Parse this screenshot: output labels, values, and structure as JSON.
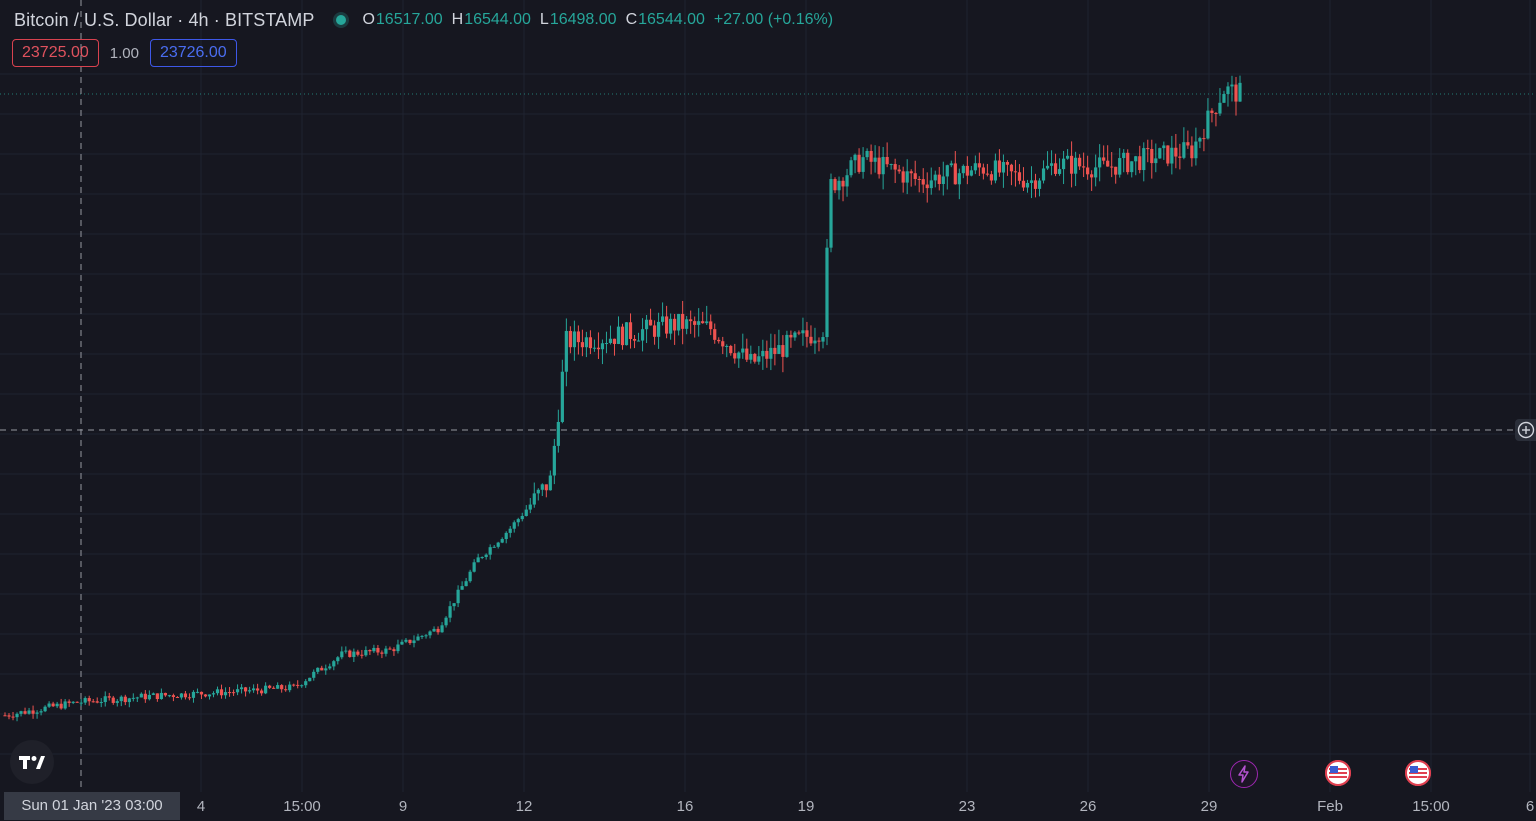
{
  "symbol": {
    "title": "Bitcoin / U.S. Dollar · 4h · BITSTAMP",
    "status": "market-open-dot"
  },
  "ohlc": {
    "open_label": "O",
    "open": "16517.00",
    "high_label": "H",
    "high": "16544.00",
    "low_label": "L",
    "low": "16498.00",
    "close_label": "C",
    "close": "16544.00",
    "change": "+27.00 (+0.16%)"
  },
  "trade": {
    "sell_price": "23725.00",
    "spread": "1.00",
    "buy_price": "23726.00"
  },
  "time_axis": {
    "crosshair_label": "Sun 01 Jan '23   03:00",
    "labels": [
      "4",
      "15:00",
      "9",
      "12",
      "16",
      "19",
      "23",
      "26",
      "29",
      "Feb",
      "15:00",
      "6"
    ]
  },
  "icons": {
    "logo": "tradingview-logo-icon",
    "add": "plus-circle-icon",
    "event_lightning": "lightning-event-icon",
    "event_us_1": "us-flag-event-icon",
    "event_us_2": "us-flag-event-icon"
  },
  "colors": {
    "background": "#161720",
    "grid": "#1f2330",
    "up": "#26a69a",
    "down": "#ef5350",
    "text": "#d1d4dc",
    "axis_text": "#b2b5be",
    "sell": "#d8424f",
    "buy": "#3e58e8",
    "lightning": "#9c27b0"
  },
  "chart_data": {
    "type": "candlestick",
    "series_name": "Bitcoin / U.S. Dollar",
    "interval": "4h",
    "exchange": "BITSTAMP",
    "price_range_estimate": [
      16400,
      23900
    ],
    "grid": true,
    "x_tick_labels": [
      "4",
      "15:00",
      "9",
      "12",
      "16",
      "19",
      "23",
      "26",
      "29",
      "Feb",
      "15:00",
      "6"
    ],
    "segments": [
      {
        "period": "Jan 1 – Jan 3",
        "price_start": 16500,
        "price_end": 16700
      },
      {
        "period": "Jan 4 – Jan 8",
        "price_start": 16700,
        "price_end": 17000
      },
      {
        "period": "Jan 9 – Jan 11",
        "price_start": 17000,
        "price_end": 17500
      },
      {
        "period": "Jan 12 – Jan 13",
        "price_start": 17500,
        "price_end": 19000
      },
      {
        "period": "Jan 14",
        "price_start": 19000,
        "price_end": 21000
      },
      {
        "period": "Jan 15 – Jan 20",
        "price_start": 20800,
        "price_end": 20900
      },
      {
        "period": "Jan 21",
        "price_start": 21000,
        "price_end": 22800
      },
      {
        "period": "Jan 22 – Jan 28",
        "price_start": 22700,
        "price_end": 23000
      },
      {
        "period": "Jan 29 – Jan 30",
        "price_start": 23000,
        "price_end": 23700
      }
    ],
    "horizontal_line_price": 23726.0
  }
}
